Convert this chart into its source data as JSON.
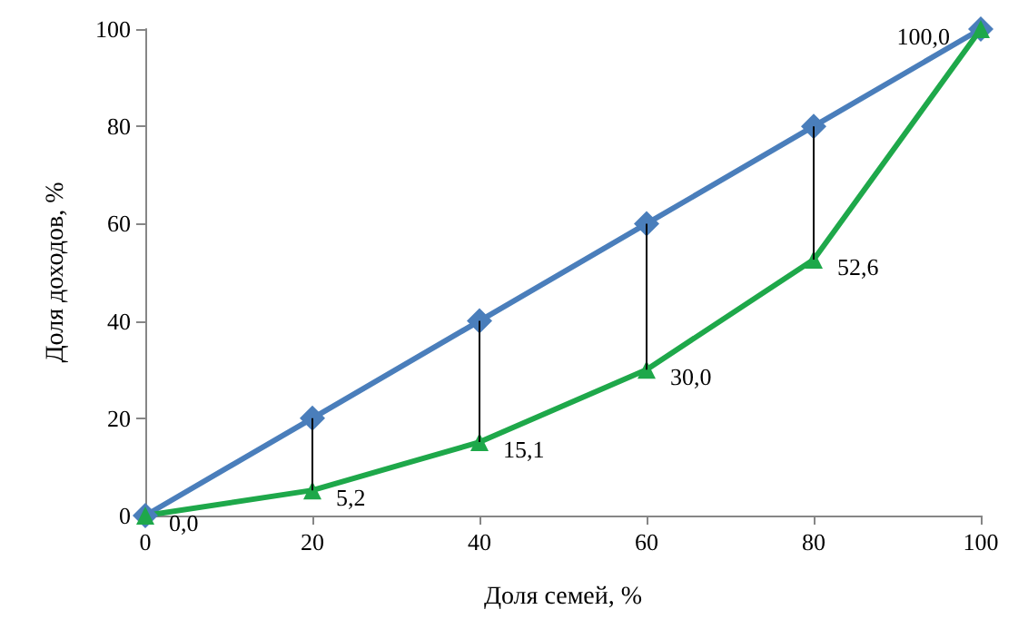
{
  "chart_data": {
    "type": "line",
    "xlabel": "Доля семей, %",
    "ylabel": "Доля доходов, %",
    "x": [
      0,
      20,
      40,
      60,
      80,
      100
    ],
    "series": [
      {
        "color": "#4a7ebb",
        "marker": "diamond",
        "values": [
          0,
          20,
          40,
          60,
          80,
          100
        ]
      },
      {
        "color": "#1ea84a",
        "marker": "triangle",
        "values": [
          0,
          5.2,
          15.1,
          30,
          52.6,
          100
        ],
        "value_labels": [
          "0,0",
          "5,2",
          "15,1",
          "30,0",
          "52,6",
          "100,0"
        ],
        "errors": [
          null,
          [
            5.2,
            20
          ],
          [
            15.1,
            40
          ],
          [
            30,
            60
          ],
          [
            52.6,
            80
          ],
          null
        ]
      }
    ],
    "xlim": [
      0,
      100
    ],
    "ylim": [
      0,
      100
    ],
    "xticks": [
      0,
      20,
      40,
      60,
      80,
      100
    ],
    "yticks": [
      0,
      20,
      40,
      60,
      80,
      100
    ],
    "grid": false,
    "line_style": "solid"
  }
}
